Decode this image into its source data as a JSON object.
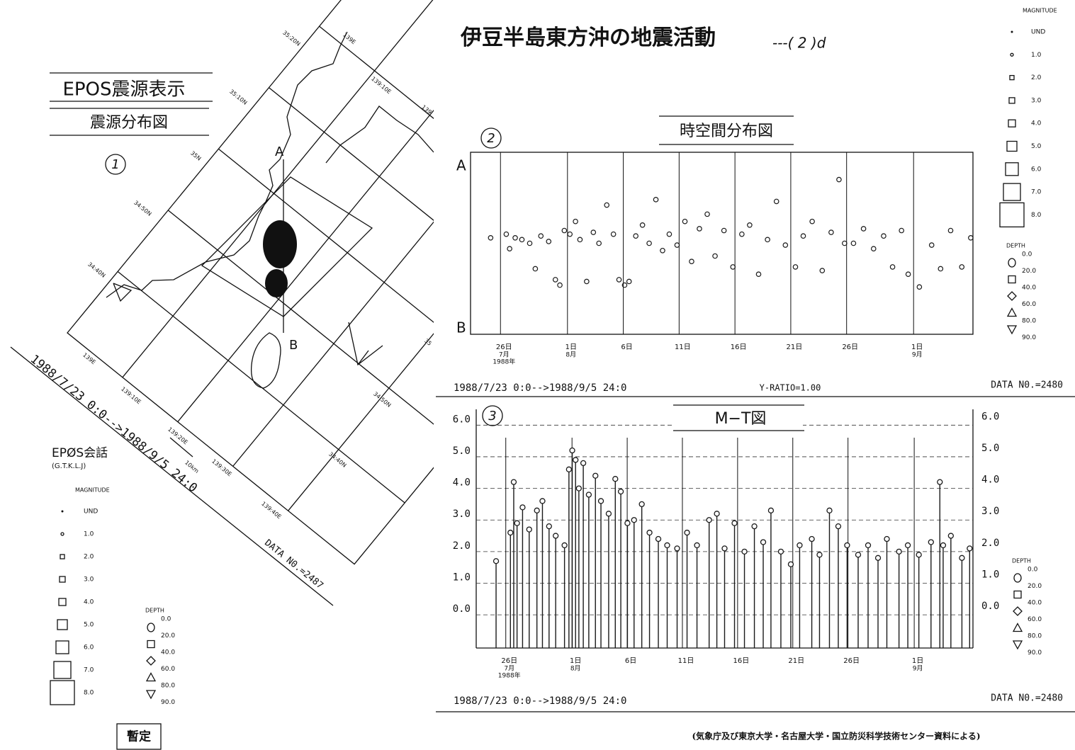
{
  "header": {
    "title": "伊豆半島東方沖の地震活動",
    "suffix": "---( 2 )d"
  },
  "map": {
    "title": "EPOS震源表示",
    "subtitle": "震源分布図",
    "number": "1",
    "section_a": "A",
    "section_b": "B",
    "scale": "10km",
    "lat_labels": [
      "35:20N",
      "35:10N",
      "35N",
      "34:50N",
      "34:40N"
    ],
    "top_labels": [
      "139E",
      "139:10E",
      "139"
    ],
    "bottom_labels": [
      "139E",
      "139:10E",
      "139:20E",
      "139:30E",
      "139:40E"
    ],
    "right_labels": [
      "34:50N",
      "34:40N",
      "35"
    ],
    "period": "1988/7/23 0:0-->1988/9/5 24:0",
    "data_no": "DATA N0.=2487",
    "session": "EPØS会話",
    "session_code": "(G.T.K.L.J)",
    "stamp": "暫定"
  },
  "legend": {
    "magnitude_title": "MAGNITUDE",
    "magnitudes": [
      "UND",
      "1.0",
      "2.0",
      "3.0",
      "4.0",
      "5.0",
      "6.0",
      "7.0",
      "8.0"
    ],
    "depth_title": "DEPTH",
    "depths": [
      "0.0",
      "20.0",
      "40.0",
      "60.0",
      "80.0",
      "90.0"
    ]
  },
  "chart_data": [
    {
      "type": "scatter",
      "title": "時空間分布図",
      "number": "2",
      "y_top_label": "A",
      "y_bottom_label": "B",
      "xlim": [
        0,
        45
      ],
      "ylim": [
        0,
        1
      ],
      "xticks": [
        {
          "value": 3,
          "label": "26日"
        },
        {
          "value": 9,
          "label": "1日"
        },
        {
          "value": 14,
          "label": "6日"
        },
        {
          "value": 19,
          "label": "11日"
        },
        {
          "value": 24,
          "label": "16日"
        },
        {
          "value": 29,
          "label": "21日"
        },
        {
          "value": 34,
          "label": "26日"
        },
        {
          "value": 40,
          "label": "1日"
        }
      ],
      "x_sublabels": [
        {
          "value": 3,
          "lines": [
            "7月",
            "1988年"
          ]
        },
        {
          "value": 9,
          "lines": [
            "8月"
          ]
        },
        {
          "value": 40,
          "lines": [
            "9月"
          ]
        }
      ],
      "grid": true,
      "color": "#1a1a1a",
      "x": [
        1.8,
        3.2,
        3.5,
        4.0,
        4.6,
        5.3,
        5.8,
        6.3,
        7.0,
        7.6,
        8.0,
        8.4,
        8.9,
        9.4,
        9.8,
        10.4,
        11.0,
        11.5,
        12.2,
        12.8,
        13.3,
        13.8,
        14.2,
        14.8,
        15.4,
        16.0,
        16.6,
        17.2,
        17.8,
        18.5,
        19.2,
        19.8,
        20.5,
        21.2,
        21.9,
        22.7,
        23.5,
        24.3,
        25.0,
        25.8,
        26.6,
        27.4,
        28.2,
        29.1,
        29.8,
        30.6,
        31.5,
        32.3,
        33.0,
        33.5,
        34.3,
        35.2,
        36.1,
        37.0,
        37.8,
        38.6,
        39.2,
        40.2,
        41.3,
        42.1,
        43.0,
        44.0,
        44.8
      ],
      "y": [
        0.53,
        0.55,
        0.47,
        0.53,
        0.52,
        0.5,
        0.36,
        0.54,
        0.51,
        0.3,
        0.27,
        0.57,
        0.55,
        0.62,
        0.52,
        0.29,
        0.56,
        0.5,
        0.71,
        0.55,
        0.3,
        0.27,
        0.29,
        0.54,
        0.6,
        0.5,
        0.74,
        0.46,
        0.55,
        0.49,
        0.62,
        0.4,
        0.58,
        0.66,
        0.43,
        0.57,
        0.37,
        0.55,
        0.6,
        0.33,
        0.52,
        0.73,
        0.49,
        0.37,
        0.54,
        0.62,
        0.35,
        0.56,
        0.85,
        0.5,
        0.5,
        0.58,
        0.47,
        0.54,
        0.37,
        0.57,
        0.33,
        0.26,
        0.49,
        0.36,
        0.57,
        0.37,
        0.53
      ],
      "period": "1988/7/23 0:0-->1988/9/5 24:0",
      "ratio": "Y-RATIO=1.00",
      "data_no": "DATA N0.=2480"
    },
    {
      "type": "stem",
      "title": "M−T図",
      "number": "3",
      "xlim": [
        0,
        45
      ],
      "ylim": [
        -1.05,
        6.5
      ],
      "yticks": [
        {
          "value": 0,
          "label": "0.0"
        },
        {
          "value": 1,
          "label": "1.0"
        },
        {
          "value": 2,
          "label": "2.0"
        },
        {
          "value": 3,
          "label": "3.0"
        },
        {
          "value": 4,
          "label": "4.0"
        },
        {
          "value": 5,
          "label": "5.0"
        },
        {
          "value": 6,
          "label": "6.0"
        }
      ],
      "xticks": [
        {
          "value": 3,
          "label": "26日"
        },
        {
          "value": 9,
          "label": "1日"
        },
        {
          "value": 14,
          "label": "6日"
        },
        {
          "value": 19,
          "label": "11日"
        },
        {
          "value": 24,
          "label": "16日"
        },
        {
          "value": 29,
          "label": "21日"
        },
        {
          "value": 34,
          "label": "26日"
        },
        {
          "value": 40,
          "label": "1日"
        }
      ],
      "x_sublabels": [
        {
          "value": 3,
          "lines": [
            "7月",
            "1988年"
          ]
        },
        {
          "value": 9,
          "lines": [
            "8月"
          ]
        },
        {
          "value": 40,
          "lines": [
            "9月"
          ]
        }
      ],
      "grid": true,
      "color": "#1a1a1a",
      "x": [
        1.8,
        3.1,
        3.4,
        3.7,
        4.2,
        4.8,
        5.5,
        6.0,
        6.6,
        7.2,
        8.0,
        8.4,
        8.7,
        9.0,
        9.3,
        9.7,
        10.2,
        10.8,
        11.3,
        12.0,
        12.6,
        13.1,
        13.7,
        14.3,
        15.0,
        15.7,
        16.5,
        17.3,
        18.2,
        19.1,
        20.0,
        21.1,
        21.8,
        22.5,
        23.4,
        24.3,
        25.2,
        26.0,
        26.7,
        27.6,
        28.5,
        29.3,
        30.4,
        31.1,
        32.0,
        32.8,
        33.6,
        34.6,
        35.5,
        36.4,
        37.2,
        38.3,
        39.1,
        40.1,
        41.2,
        42.0,
        42.3,
        43.0,
        44.0,
        44.7
      ],
      "y": [
        1.7,
        2.6,
        4.2,
        2.9,
        3.4,
        2.7,
        3.3,
        3.6,
        2.8,
        2.5,
        2.2,
        4.6,
        5.2,
        4.9,
        4.0,
        4.8,
        3.8,
        4.4,
        3.6,
        3.2,
        4.3,
        3.9,
        2.9,
        3.0,
        3.5,
        2.6,
        2.4,
        2.2,
        2.1,
        2.6,
        2.2,
        3.0,
        3.2,
        2.1,
        2.9,
        2.0,
        2.8,
        2.3,
        3.3,
        2.0,
        1.6,
        2.2,
        2.4,
        1.9,
        3.3,
        2.8,
        2.2,
        1.9,
        2.2,
        1.8,
        2.4,
        2.0,
        2.2,
        1.9,
        2.3,
        4.2,
        2.2,
        2.5,
        1.8,
        2.1
      ],
      "period": "1988/7/23 0:0-->1988/9/5 24:0",
      "data_no": "DATA N0.=2480"
    }
  ],
  "footer": {
    "credit": "(気象庁及び東京大学・名古屋大学・国立防災科学技術センター資料による)"
  }
}
